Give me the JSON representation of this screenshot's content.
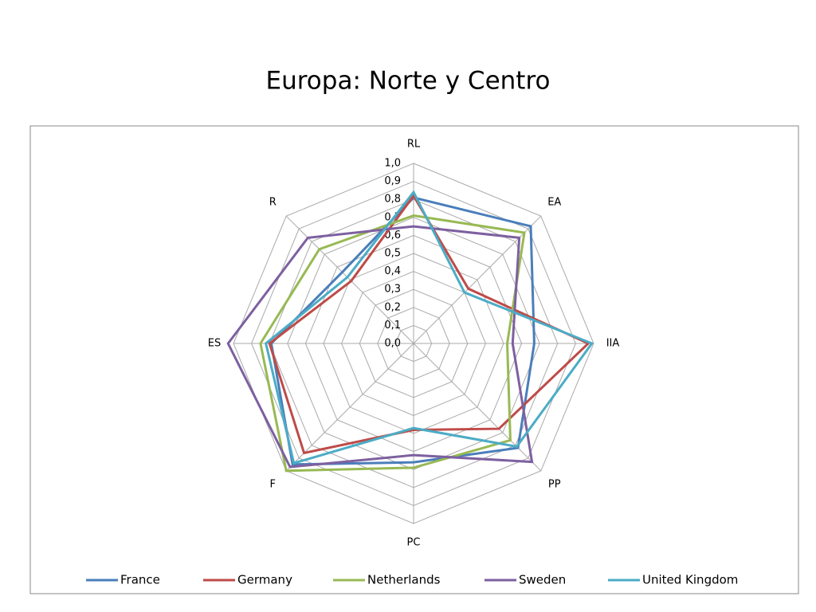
{
  "chart_data": {
    "type": "radar",
    "title": "Europa: Norte y Centro",
    "categories": [
      "RL",
      "EA",
      "IIA",
      "PP",
      "PC",
      "F",
      "ES",
      "R"
    ],
    "ylim": [
      0,
      1
    ],
    "yticks": [
      {
        "value": 0,
        "label": "0,0"
      },
      {
        "value": 0.1,
        "label": "0,1"
      },
      {
        "value": 0.2,
        "label": "0,2"
      },
      {
        "value": 0.3,
        "label": "0,3"
      },
      {
        "value": 0.4,
        "label": "0,4"
      },
      {
        "value": 0.5,
        "label": "0,5"
      },
      {
        "value": 0.6,
        "label": "0,6"
      },
      {
        "value": 0.7,
        "label": "0,7"
      },
      {
        "value": 0.8,
        "label": "0,8"
      },
      {
        "value": 0.9,
        "label": "0,9"
      },
      {
        "value": 1,
        "label": "1,0"
      }
    ],
    "grid": true,
    "legend": "bottom",
    "series": [
      {
        "name": "France",
        "color": "#4a7ebb",
        "values": [
          0.81,
          0.92,
          0.67,
          0.82,
          0.66,
          0.95,
          0.79,
          0.56
        ]
      },
      {
        "name": "Germany",
        "color": "#be4b48",
        "values": [
          0.82,
          0.43,
          0.97,
          0.67,
          0.48,
          0.86,
          0.8,
          0.49
        ]
      },
      {
        "name": "Netherlands",
        "color": "#98b954",
        "values": [
          0.71,
          0.87,
          0.52,
          0.76,
          0.69,
          1.0,
          0.85,
          0.74
        ]
      },
      {
        "name": "Sweden",
        "color": "#7d60a0",
        "values": [
          0.65,
          0.83,
          0.55,
          0.93,
          0.62,
          0.97,
          1.03,
          0.83
        ]
      },
      {
        "name": "United Kingdom",
        "color": "#4bacc6",
        "values": [
          0.84,
          0.4,
          0.99,
          0.81,
          0.47,
          0.94,
          0.82,
          0.52
        ]
      }
    ]
  }
}
